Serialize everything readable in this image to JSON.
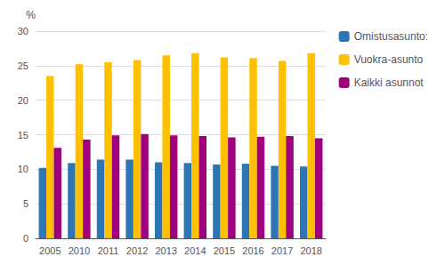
{
  "chart_data": {
    "type": "bar",
    "ylabel": "%",
    "categories": [
      "2005",
      "2010",
      "2011",
      "2012",
      "2013",
      "2014",
      "2015",
      "2016",
      "2017",
      "2018"
    ],
    "series": [
      {
        "name": "Omistusasunto:",
        "color": "#2E75B6",
        "values": [
          10.2,
          10.9,
          11.4,
          11.4,
          11.0,
          10.9,
          10.7,
          10.8,
          10.5,
          10.4
        ]
      },
      {
        "name": "Vuokra-asunto",
        "color": "#FFC000",
        "values": [
          23.5,
          25.2,
          25.5,
          25.8,
          26.5,
          26.8,
          26.2,
          26.1,
          25.7,
          26.8
        ]
      },
      {
        "name": "Kaikki asunnot",
        "color": "#9E007E",
        "values": [
          13.1,
          14.3,
          14.9,
          15.1,
          14.9,
          14.8,
          14.6,
          14.7,
          14.8,
          14.5
        ]
      }
    ],
    "ylim": [
      0,
      30
    ],
    "yticks": [
      0,
      5,
      10,
      15,
      20,
      25,
      30
    ],
    "grid": true,
    "legend": "right"
  }
}
